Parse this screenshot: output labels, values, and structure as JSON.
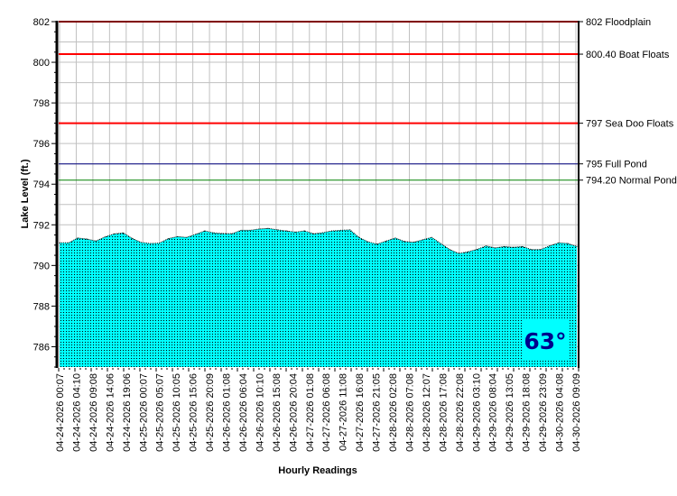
{
  "chart_data": {
    "type": "area",
    "xlabel": "Hourly Readings",
    "ylabel": "Lake Level (ft.)",
    "ylim": [
      785,
      802
    ],
    "yticks": [
      786,
      788,
      790,
      792,
      794,
      796,
      798,
      800,
      802
    ],
    "grid": true,
    "x_tick_labels": [
      "04-24-2026 00:07",
      "04-24-2026 04:10",
      "04-24-2026 09:08",
      "04-24-2026 14:06",
      "04-24-2026 19:06",
      "04-25-2026 00:07",
      "04-25-2026 05:07",
      "04-25-2026 10:05",
      "04-25-2026 15:06",
      "04-25-2026 20:09",
      "04-26-2026 01:08",
      "04-26-2026 06:04",
      "04-26-2026 10:10",
      "04-26-2026 15:08",
      "04-26-2026 20:04",
      "04-27-2026 01:08",
      "04-27-2026 06:08",
      "04-27-2026 11:08",
      "04-27-2026 16:08",
      "04-27-2026 21:05",
      "04-28-2026 02:08",
      "04-28-2026 07:08",
      "04-28-2026 12:07",
      "04-28-2026 17:08",
      "04-28-2026 22:08",
      "04-29-2026 03:10",
      "04-29-2026 08:04",
      "04-29-2026 13:05",
      "04-29-2026 18:08",
      "04-29-2026 23:09",
      "04-30-2026 04:08",
      "04-30-2026 09:09"
    ],
    "series": [
      {
        "color": "#00FFFF",
        "values": [
          791.11,
          791.11,
          791.35,
          791.3,
          791.2,
          791.4,
          791.55,
          791.6,
          791.33,
          791.13,
          791.08,
          791.1,
          791.32,
          791.42,
          791.38,
          791.53,
          791.7,
          791.6,
          791.57,
          791.56,
          791.73,
          791.73,
          791.79,
          791.82,
          791.75,
          791.7,
          791.64,
          791.7,
          791.56,
          791.61,
          791.7,
          791.73,
          791.75,
          791.38,
          791.16,
          791.05,
          791.2,
          791.35,
          791.18,
          791.14,
          791.26,
          791.38,
          791.08,
          790.78,
          790.59,
          790.67,
          790.79,
          790.96,
          790.86,
          790.93,
          790.89,
          790.93,
          790.78,
          790.78,
          790.96,
          791.11,
          791.08,
          790.93
        ]
      }
    ],
    "reference_lines": [
      {
        "value": 802,
        "label": "802 Floodplain",
        "color": "#FF0000"
      },
      {
        "value": 800.4,
        "label": "800.40 Boat Floats",
        "color": "#FF0000"
      },
      {
        "value": 797,
        "label": "797 Sea Doo Floats",
        "color": "#FF0000"
      },
      {
        "value": 795,
        "label": "795 Full Pond",
        "color": "#000080"
      },
      {
        "value": 794.2,
        "label": "794.20 Normal Pond",
        "color": "#008000"
      }
    ],
    "annotation": {
      "text": "63°",
      "background": "#00FFFF",
      "color": "#00008B"
    }
  }
}
